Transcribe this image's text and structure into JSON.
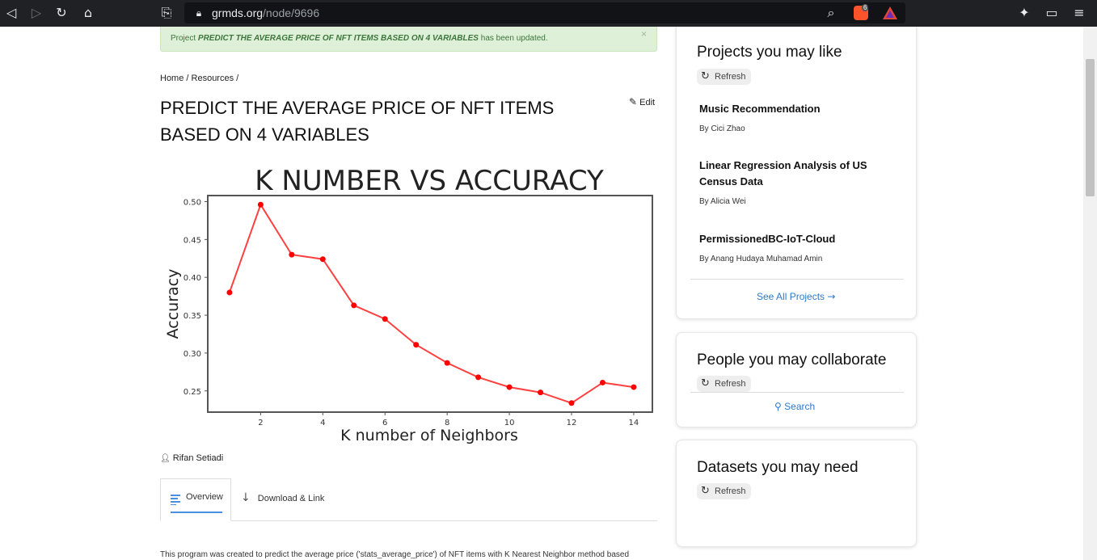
{
  "browser": {
    "url_domain": "grmds.org",
    "url_path": "/node/9696",
    "shield_badge": "6"
  },
  "alert": {
    "prefix": "Project",
    "project_name": "PREDICT THE AVERAGE PRICE OF NFT ITEMS BASED ON 4 VARIABLES",
    "suffix": "has been updated.",
    "close": "×"
  },
  "breadcrumb": "Home / Resources /",
  "title_line1": "PREDICT THE AVERAGE PRICE OF NFT ITEMS",
  "title_line2": "BASED ON 4 VARIABLES",
  "edit_label": "Edit",
  "author": "Rifan Setiadi",
  "tabs": {
    "overview": "Overview",
    "download": "Download & Link"
  },
  "description": "This program was created to predict the average price ('stats_average_price') of NFT items with K Nearest Neighbor method based",
  "chart_data": {
    "type": "line",
    "title": "K NUMBER VS ACCURACY",
    "xlabel": "K number of Neighbors",
    "ylabel": "Accuracy",
    "x": [
      1,
      2,
      3,
      4,
      5,
      6,
      7,
      8,
      9,
      10,
      11,
      12,
      13,
      14
    ],
    "y": [
      0.38,
      0.496,
      0.43,
      0.424,
      0.363,
      0.345,
      0.311,
      0.287,
      0.268,
      0.255,
      0.248,
      0.234,
      0.261,
      0.255
    ],
    "xticks": [
      "2",
      "4",
      "6",
      "8",
      "10",
      "12",
      "14"
    ],
    "yticks": [
      "0.25",
      "0.30",
      "0.35",
      "0.40",
      "0.45",
      "0.50"
    ],
    "xlim": [
      0.3,
      14.6
    ],
    "ylim": [
      0.222,
      0.508
    ],
    "color": "#ff0000",
    "grid": false
  },
  "sidebar": {
    "projects_title": "Projects you may like",
    "refresh_label": "Refresh",
    "projects": [
      {
        "title": "Music Recommendation",
        "by": "By Cici Zhao"
      },
      {
        "title": "Linear Regression Analysis of US Census Data",
        "by": "By Alicia Wei"
      },
      {
        "title": "PermissionedBC-IoT-Cloud",
        "by": "By Anang Hudaya Muhamad Amin"
      }
    ],
    "see_all": "See All Projects",
    "people_title": "People you may collaborate",
    "search_label": "Search",
    "datasets_title": "Datasets you may need"
  }
}
